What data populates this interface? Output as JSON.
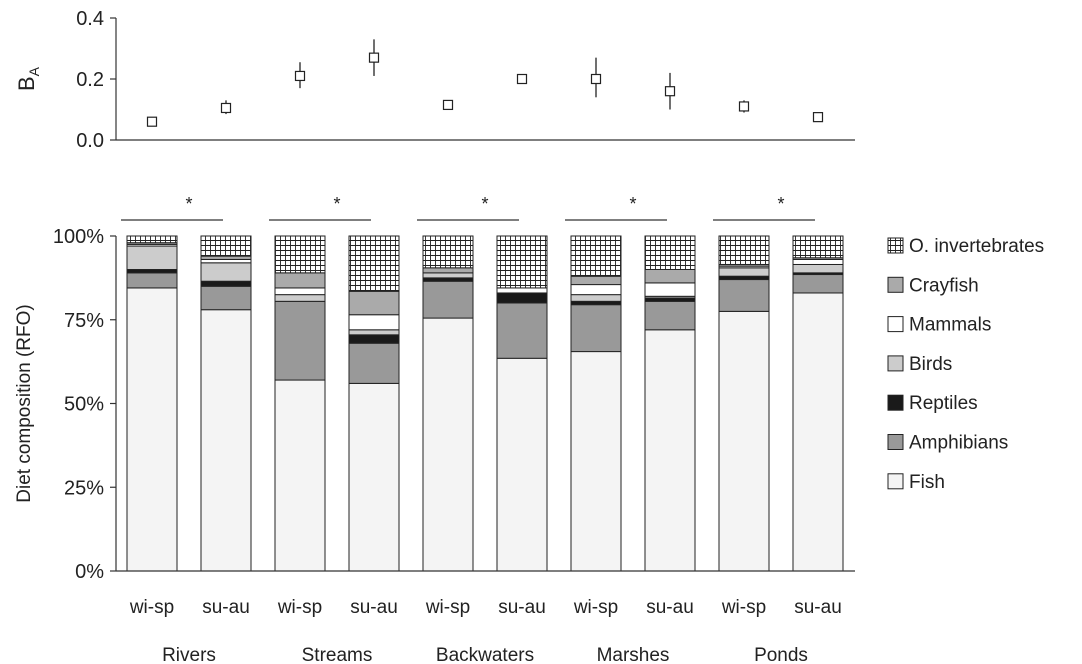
{
  "chart_data": [
    {
      "type": "scatter",
      "ylabel": "B",
      "ylabel_sub": "A",
      "ylim": [
        0,
        0.4
      ],
      "yticks": [
        "0.0",
        "0.2",
        "0.4"
      ],
      "categories": [
        "wi-sp",
        "su-au",
        "wi-sp",
        "su-au",
        "wi-sp",
        "su-au",
        "wi-sp",
        "su-au",
        "wi-sp",
        "su-au"
      ],
      "groups": [
        "Rivers",
        "Streams",
        "Backwaters",
        "Marshes",
        "Ponds"
      ],
      "values": [
        0.06,
        0.105,
        0.21,
        0.27,
        0.115,
        0.2,
        0.2,
        0.16,
        0.11,
        0.075
      ],
      "error_low": [
        0.06,
        0.085,
        0.17,
        0.21,
        0.115,
        0.2,
        0.14,
        0.1,
        0.09,
        0.075
      ],
      "error_high": [
        0.06,
        0.13,
        0.255,
        0.33,
        0.115,
        0.2,
        0.27,
        0.22,
        0.13,
        0.075
      ]
    },
    {
      "type": "bar",
      "stacked": true,
      "ylabel": "Diet composition (RFO)",
      "ylim": [
        0,
        100
      ],
      "yticks": [
        "0%",
        "25%",
        "50%",
        "75%",
        "100%"
      ],
      "categories": [
        "wi-sp",
        "su-au",
        "wi-sp",
        "su-au",
        "wi-sp",
        "su-au",
        "wi-sp",
        "su-au",
        "wi-sp",
        "su-au"
      ],
      "groups": [
        "Rivers",
        "Streams",
        "Backwaters",
        "Marshes",
        "Ponds"
      ],
      "significance_marker": "*",
      "legend_position": "right",
      "series": [
        {
          "name": "Fish",
          "color": "#f4f4f4",
          "values": [
            84.5,
            78,
            57,
            56,
            75.5,
            63.5,
            65.5,
            72,
            77.5,
            83
          ]
        },
        {
          "name": "Amphibians",
          "color": "#999999",
          "values": [
            4.5,
            7,
            23.5,
            12,
            11,
            16.5,
            14,
            8.5,
            9.5,
            5.5
          ]
        },
        {
          "name": "Reptiles",
          "color": "#1a1a1a",
          "values": [
            1,
            1.5,
            0,
            2.5,
            1,
            3,
            1,
            1,
            1,
            0.5
          ]
        },
        {
          "name": "Birds",
          "color": "#cccccc",
          "values": [
            7,
            5.5,
            2,
            1.5,
            1.5,
            0,
            2,
            0.5,
            2.5,
            2.5
          ]
        },
        {
          "name": "Mammals",
          "color": "#ffffff",
          "values": [
            0.5,
            1,
            2,
            4.5,
            0,
            1.5,
            3,
            4,
            0.5,
            1.5
          ]
        },
        {
          "name": "Crayfish",
          "color": "#aaaaaa",
          "values": [
            0.5,
            1,
            4.5,
            7,
            1.5,
            0,
            2.5,
            4,
            0.5,
            0.5
          ]
        },
        {
          "name": "O. invertebrates",
          "color": "#ffffff",
          "pattern": "grid",
          "values": [
            2,
            6,
            11,
            16.5,
            9.5,
            15.5,
            12,
            10,
            8.5,
            6.5
          ]
        }
      ]
    }
  ]
}
